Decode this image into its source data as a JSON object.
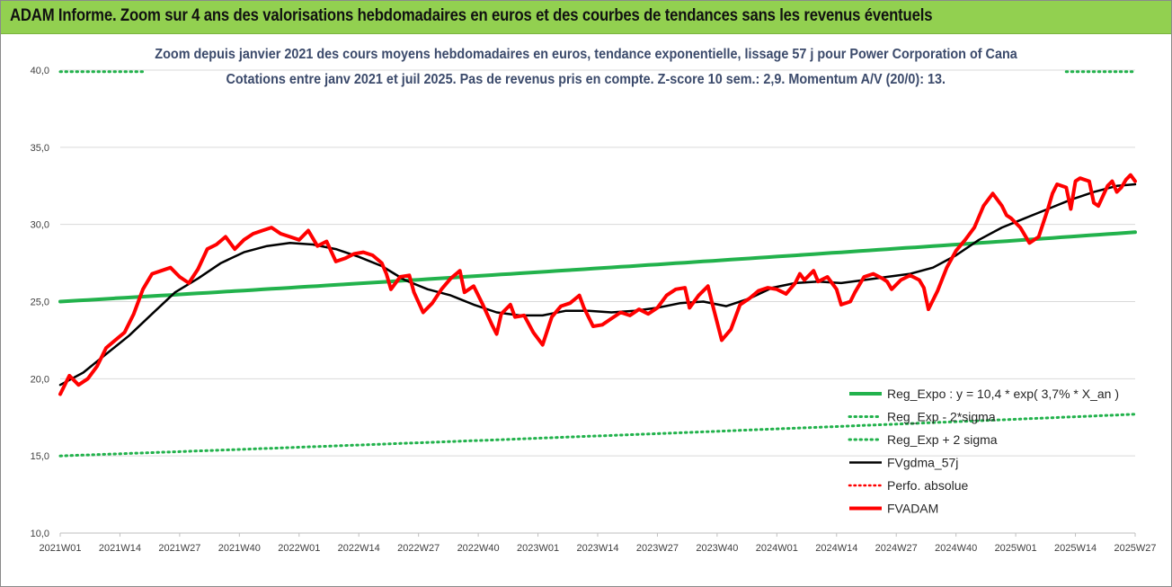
{
  "banner": {
    "title": "ADAM Informe. Zoom sur 4 ans des valorisations hebdomadaires en euros et des courbes de tendances sans les revenus éventuels"
  },
  "colors": {
    "banner_bg": "#92d050",
    "title_text": "#3b4a6b",
    "green_series": "#22b24c",
    "black_series": "#000000",
    "red_series": "#ff0000"
  },
  "chart_data": {
    "type": "line",
    "title": "Zoom depuis janvier 2021 des cours moyens hebdomadaires en euros, tendance exponentielle, lissage 57 j pour Power Corporation of Cana",
    "subtitle": "Cotations entre janv 2021 et juil 2025. Pas de revenus pris en compte. Z-score 10 sem.: 2,9. Momentum A/V (20/0): 13.",
    "xlabel": "",
    "ylabel": "",
    "ylim": [
      10,
      40
    ],
    "yticks": [
      "10,0",
      "15,0",
      "20,0",
      "25,0",
      "30,0",
      "35,0",
      "40,0"
    ],
    "x_tick_labels": [
      "2021W01",
      "2021W14",
      "2021W27",
      "2021W40",
      "2022W01",
      "2022W14",
      "2022W27",
      "2022W40",
      "2023W01",
      "2023W14",
      "2023W27",
      "2023W40",
      "2024W01",
      "2024W14",
      "2024W27",
      "2024W40",
      "2025W01",
      "2025W14",
      "2025W27"
    ],
    "x_tick_index": [
      0,
      13,
      26,
      39,
      52,
      65,
      78,
      91,
      104,
      117,
      130,
      143,
      156,
      169,
      182,
      195,
      208,
      221,
      234
    ],
    "n_points": 235,
    "grid": "horizontal",
    "legend_position": "bottom-right",
    "legend": [
      {
        "key": "reg",
        "label": "Reg_Expo : y = 10,4 * exp( 3,7% *  X_an )"
      },
      {
        "key": "low",
        "label": "Reg_Exp - 2*sigma"
      },
      {
        "key": "high",
        "label": "Reg_Exp + 2 sigma"
      },
      {
        "key": "gdma",
        "label": "FVgdma_57j"
      },
      {
        "key": "perf",
        "label": "Perfo. absolue"
      },
      {
        "key": "adam",
        "label": "FVADAM"
      }
    ],
    "series": [
      {
        "name": "Reg_Expo : y = 10,4 * exp( 3,7% *  X_an )",
        "key": "reg",
        "style": "solid",
        "start": 25.0,
        "end": 29.5
      },
      {
        "name": "Reg_Exp - 2*sigma",
        "key": "low",
        "style": "dotted",
        "start": 15.0,
        "end": 17.7
      },
      {
        "name": "Reg_Exp + 2 sigma",
        "key": "high",
        "style": "dotted",
        "start": 39.9,
        "end": 39.9,
        "visible_ranges": [
          [
            0,
            18
          ],
          [
            219,
            234
          ]
        ]
      },
      {
        "name": "FVgdma_57j",
        "key": "gdma",
        "style": "solid",
        "points": [
          [
            0,
            19.6
          ],
          [
            5,
            20.4
          ],
          [
            10,
            21.6
          ],
          [
            15,
            22.8
          ],
          [
            20,
            24.2
          ],
          [
            25,
            25.6
          ],
          [
            30,
            26.5
          ],
          [
            35,
            27.5
          ],
          [
            40,
            28.2
          ],
          [
            45,
            28.6
          ],
          [
            50,
            28.8
          ],
          [
            55,
            28.7
          ],
          [
            60,
            28.4
          ],
          [
            65,
            27.9
          ],
          [
            70,
            27.3
          ],
          [
            75,
            26.4
          ],
          [
            80,
            25.8
          ],
          [
            85,
            25.4
          ],
          [
            90,
            24.8
          ],
          [
            95,
            24.3
          ],
          [
            100,
            24.1
          ],
          [
            105,
            24.1
          ],
          [
            110,
            24.4
          ],
          [
            115,
            24.4
          ],
          [
            120,
            24.3
          ],
          [
            125,
            24.4
          ],
          [
            130,
            24.6
          ],
          [
            135,
            24.9
          ],
          [
            140,
            25.0
          ],
          [
            145,
            24.7
          ],
          [
            150,
            25.2
          ],
          [
            155,
            25.9
          ],
          [
            160,
            26.2
          ],
          [
            165,
            26.3
          ],
          [
            170,
            26.2
          ],
          [
            175,
            26.4
          ],
          [
            180,
            26.6
          ],
          [
            185,
            26.8
          ],
          [
            190,
            27.2
          ],
          [
            195,
            28.0
          ],
          [
            200,
            29.0
          ],
          [
            205,
            29.8
          ],
          [
            210,
            30.4
          ],
          [
            215,
            31.0
          ],
          [
            220,
            31.6
          ],
          [
            225,
            32.1
          ],
          [
            230,
            32.5
          ],
          [
            234,
            32.6
          ]
        ]
      },
      {
        "name": "Perfo. absolue",
        "key": "perf",
        "style": "dotted",
        "points": []
      },
      {
        "name": "FVADAM",
        "key": "adam",
        "style": "solid",
        "points": [
          [
            0,
            19.0
          ],
          [
            2,
            20.2
          ],
          [
            4,
            19.6
          ],
          [
            6,
            20.0
          ],
          [
            8,
            20.8
          ],
          [
            10,
            22.0
          ],
          [
            12,
            22.5
          ],
          [
            14,
            23.0
          ],
          [
            16,
            24.2
          ],
          [
            18,
            25.8
          ],
          [
            20,
            26.8
          ],
          [
            22,
            27.0
          ],
          [
            24,
            27.2
          ],
          [
            26,
            26.6
          ],
          [
            28,
            26.2
          ],
          [
            30,
            27.1
          ],
          [
            32,
            28.4
          ],
          [
            34,
            28.7
          ],
          [
            36,
            29.2
          ],
          [
            38,
            28.4
          ],
          [
            40,
            29.0
          ],
          [
            42,
            29.4
          ],
          [
            44,
            29.6
          ],
          [
            46,
            29.8
          ],
          [
            48,
            29.4
          ],
          [
            50,
            29.2
          ],
          [
            52,
            29.0
          ],
          [
            54,
            29.6
          ],
          [
            56,
            28.6
          ],
          [
            58,
            28.9
          ],
          [
            60,
            27.6
          ],
          [
            62,
            27.8
          ],
          [
            64,
            28.1
          ],
          [
            66,
            28.2
          ],
          [
            68,
            28.0
          ],
          [
            70,
            27.5
          ],
          [
            71,
            26.8
          ],
          [
            72,
            25.8
          ],
          [
            74,
            26.6
          ],
          [
            76,
            26.7
          ],
          [
            77,
            25.6
          ],
          [
            79,
            24.3
          ],
          [
            81,
            24.9
          ],
          [
            83,
            25.8
          ],
          [
            85,
            26.5
          ],
          [
            87,
            27.0
          ],
          [
            88,
            25.6
          ],
          [
            90,
            26.0
          ],
          [
            92,
            24.8
          ],
          [
            94,
            23.5
          ],
          [
            95,
            22.9
          ],
          [
            96,
            24.2
          ],
          [
            98,
            24.8
          ],
          [
            99,
            24.0
          ],
          [
            101,
            24.1
          ],
          [
            103,
            23.0
          ],
          [
            105,
            22.2
          ],
          [
            107,
            24.0
          ],
          [
            109,
            24.7
          ],
          [
            111,
            24.9
          ],
          [
            113,
            25.4
          ],
          [
            114,
            24.6
          ],
          [
            116,
            23.4
          ],
          [
            118,
            23.5
          ],
          [
            120,
            23.9
          ],
          [
            122,
            24.3
          ],
          [
            124,
            24.1
          ],
          [
            126,
            24.5
          ],
          [
            128,
            24.2
          ],
          [
            130,
            24.6
          ],
          [
            132,
            25.4
          ],
          [
            134,
            25.8
          ],
          [
            136,
            25.9
          ],
          [
            137,
            24.6
          ],
          [
            139,
            25.4
          ],
          [
            141,
            26.0
          ],
          [
            142,
            24.8
          ],
          [
            144,
            22.5
          ],
          [
            146,
            23.2
          ],
          [
            148,
            24.8
          ],
          [
            150,
            25.2
          ],
          [
            152,
            25.7
          ],
          [
            154,
            25.9
          ],
          [
            156,
            25.8
          ],
          [
            158,
            25.5
          ],
          [
            160,
            26.2
          ],
          [
            161,
            26.8
          ],
          [
            162,
            26.4
          ],
          [
            164,
            27.0
          ],
          [
            165,
            26.3
          ],
          [
            167,
            26.6
          ],
          [
            169,
            25.8
          ],
          [
            170,
            24.8
          ],
          [
            172,
            25.0
          ],
          [
            173,
            25.6
          ],
          [
            175,
            26.6
          ],
          [
            177,
            26.8
          ],
          [
            179,
            26.5
          ],
          [
            180,
            26.3
          ],
          [
            181,
            25.8
          ],
          [
            183,
            26.4
          ],
          [
            185,
            26.7
          ],
          [
            187,
            26.4
          ],
          [
            188,
            25.9
          ],
          [
            189,
            24.5
          ],
          [
            191,
            25.7
          ],
          [
            193,
            27.2
          ],
          [
            195,
            28.3
          ],
          [
            197,
            29.0
          ],
          [
            199,
            29.8
          ],
          [
            201,
            31.2
          ],
          [
            203,
            32.0
          ],
          [
            205,
            31.2
          ],
          [
            206,
            30.6
          ],
          [
            207,
            30.4
          ],
          [
            209,
            29.8
          ],
          [
            211,
            28.8
          ],
          [
            213,
            29.2
          ],
          [
            215,
            31.0
          ],
          [
            216,
            32.0
          ],
          [
            217,
            32.6
          ],
          [
            219,
            32.4
          ],
          [
            220,
            31.0
          ],
          [
            221,
            32.8
          ],
          [
            222,
            33.0
          ],
          [
            224,
            32.8
          ],
          [
            225,
            31.4
          ],
          [
            226,
            31.2
          ],
          [
            228,
            32.5
          ],
          [
            229,
            32.8
          ],
          [
            230,
            32.1
          ],
          [
            231,
            32.4
          ],
          [
            232,
            32.9
          ],
          [
            233,
            33.2
          ],
          [
            234,
            32.8
          ]
        ]
      }
    ]
  }
}
